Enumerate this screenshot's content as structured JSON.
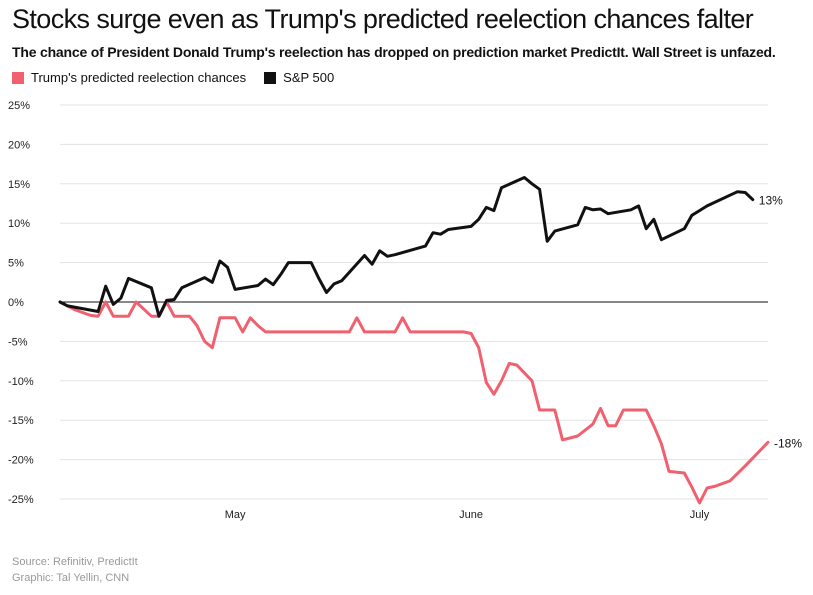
{
  "header": {
    "title": "Stocks surge even as Trump's predicted reelection chances falter",
    "subtitle": "The chance of President Donald Trump's reelection has dropped on prediction market PredictIt. Wall Street is unfazed."
  },
  "footer": {
    "source": "Source: Refinitiv, PredictIt",
    "graphic": "Graphic: Tal Yellin, CNN"
  },
  "chart_data": {
    "type": "line",
    "xlabel": "",
    "ylabel": "",
    "ylim": [
      -25,
      25
    ],
    "yticks": [
      25,
      20,
      15,
      10,
      5,
      0,
      -5,
      -10,
      -15,
      -20,
      -25
    ],
    "ytick_labels": [
      "25%",
      "20%",
      "15%",
      "10%",
      "5%",
      "0%",
      "-5%",
      "-10%",
      "-15%",
      "-20%",
      "-25%"
    ],
    "xlim": [
      "2020-04-08",
      "2020-07-10"
    ],
    "xticks": [
      {
        "label": "May",
        "date": "2020-05-01"
      },
      {
        "label": "June",
        "date": "2020-06-01"
      },
      {
        "label": "July",
        "date": "2020-07-01"
      }
    ],
    "grid": true,
    "legend_position": "top-left",
    "series": [
      {
        "name": "Trump's predicted reelection chances",
        "color": "#f0606f",
        "end_label": "-18%",
        "points": [
          [
            "2020-04-08",
            0
          ],
          [
            "2020-04-10",
            -1
          ],
          [
            "2020-04-12",
            -1.7
          ],
          [
            "2020-04-13",
            -1.8
          ],
          [
            "2020-04-14",
            0
          ],
          [
            "2020-04-15",
            -1.8
          ],
          [
            "2020-04-16",
            -1.8
          ],
          [
            "2020-04-17",
            -1.8
          ],
          [
            "2020-04-18",
            0
          ],
          [
            "2020-04-20",
            -1.8
          ],
          [
            "2020-04-21",
            -1.8
          ],
          [
            "2020-04-22",
            0
          ],
          [
            "2020-04-23",
            -1.8
          ],
          [
            "2020-04-24",
            -1.8
          ],
          [
            "2020-04-25",
            -1.8
          ],
          [
            "2020-04-26",
            -3
          ],
          [
            "2020-04-27",
            -5
          ],
          [
            "2020-04-28",
            -5.8
          ],
          [
            "2020-04-29",
            -2
          ],
          [
            "2020-04-30",
            -2
          ],
          [
            "2020-05-01",
            -2
          ],
          [
            "2020-05-02",
            -3.8
          ],
          [
            "2020-05-03",
            -2
          ],
          [
            "2020-05-04",
            -3
          ],
          [
            "2020-05-05",
            -3.8
          ],
          [
            "2020-05-15",
            -3.8
          ],
          [
            "2020-05-16",
            -3.8
          ],
          [
            "2020-05-17",
            -2
          ],
          [
            "2020-05-18",
            -3.8
          ],
          [
            "2020-05-22",
            -3.8
          ],
          [
            "2020-05-23",
            -2
          ],
          [
            "2020-05-24",
            -3.8
          ],
          [
            "2020-05-29",
            -3.8
          ],
          [
            "2020-05-31",
            -3.8
          ],
          [
            "2020-06-01",
            -4
          ],
          [
            "2020-06-02",
            -5.8
          ],
          [
            "2020-06-03",
            -10.2
          ],
          [
            "2020-06-04",
            -11.7
          ],
          [
            "2020-06-05",
            -10
          ],
          [
            "2020-06-06",
            -7.8
          ],
          [
            "2020-06-07",
            -8
          ],
          [
            "2020-06-08",
            -9
          ],
          [
            "2020-06-09",
            -10
          ],
          [
            "2020-06-10",
            -13.7
          ],
          [
            "2020-06-11",
            -13.7
          ],
          [
            "2020-06-12",
            -13.7
          ],
          [
            "2020-06-13",
            -17.5
          ],
          [
            "2020-06-15",
            -17
          ],
          [
            "2020-06-17",
            -15.5
          ],
          [
            "2020-06-18",
            -13.5
          ],
          [
            "2020-06-19",
            -15.7
          ],
          [
            "2020-06-20",
            -15.7
          ],
          [
            "2020-06-21",
            -13.7
          ],
          [
            "2020-06-23",
            -13.7
          ],
          [
            "2020-06-24",
            -13.7
          ],
          [
            "2020-06-25",
            -15.7
          ],
          [
            "2020-06-26",
            -18
          ],
          [
            "2020-06-27",
            -21.5
          ],
          [
            "2020-06-29",
            -21.7
          ],
          [
            "2020-06-30",
            -23.5
          ],
          [
            "2020-07-01",
            -25.5
          ],
          [
            "2020-07-02",
            -23.6
          ],
          [
            "2020-07-03",
            -23.4
          ],
          [
            "2020-07-05",
            -22.7
          ],
          [
            "2020-07-07",
            -20.8
          ],
          [
            "2020-07-10",
            -17.8
          ]
        ]
      },
      {
        "name": "S&P 500",
        "color": "#111111",
        "end_label": "13%",
        "points": [
          [
            "2020-04-08",
            0
          ],
          [
            "2020-04-09",
            -0.5
          ],
          [
            "2020-04-13",
            -1.2
          ],
          [
            "2020-04-14",
            2
          ],
          [
            "2020-04-15",
            -0.3
          ],
          [
            "2020-04-16",
            0.5
          ],
          [
            "2020-04-17",
            3
          ],
          [
            "2020-04-20",
            1.8
          ],
          [
            "2020-04-21",
            -1.8
          ],
          [
            "2020-04-22",
            0.2
          ],
          [
            "2020-04-23",
            0.3
          ],
          [
            "2020-04-24",
            1.8
          ],
          [
            "2020-04-27",
            3.1
          ],
          [
            "2020-04-28",
            2.5
          ],
          [
            "2020-04-29",
            5.2
          ],
          [
            "2020-04-30",
            4.4
          ],
          [
            "2020-05-01",
            1.6
          ],
          [
            "2020-05-04",
            2.1
          ],
          [
            "2020-05-05",
            2.9
          ],
          [
            "2020-05-06",
            2.2
          ],
          [
            "2020-05-07",
            3.5
          ],
          [
            "2020-05-08",
            5
          ],
          [
            "2020-05-11",
            5
          ],
          [
            "2020-05-12",
            3
          ],
          [
            "2020-05-13",
            1.2
          ],
          [
            "2020-05-14",
            2.3
          ],
          [
            "2020-05-15",
            2.7
          ],
          [
            "2020-05-18",
            5.9
          ],
          [
            "2020-05-19",
            4.8
          ],
          [
            "2020-05-20",
            6.5
          ],
          [
            "2020-05-21",
            5.8
          ],
          [
            "2020-05-22",
            6
          ],
          [
            "2020-05-26",
            7.1
          ],
          [
            "2020-05-27",
            8.8
          ],
          [
            "2020-05-28",
            8.6
          ],
          [
            "2020-05-29",
            9.2
          ],
          [
            "2020-06-01",
            9.6
          ],
          [
            "2020-06-02",
            10.5
          ],
          [
            "2020-06-03",
            12
          ],
          [
            "2020-06-04",
            11.6
          ],
          [
            "2020-06-05",
            14.5
          ],
          [
            "2020-06-08",
            15.8
          ],
          [
            "2020-06-09",
            15
          ],
          [
            "2020-06-10",
            14.3
          ],
          [
            "2020-06-11",
            7.7
          ],
          [
            "2020-06-12",
            9
          ],
          [
            "2020-06-15",
            9.8
          ],
          [
            "2020-06-16",
            12
          ],
          [
            "2020-06-17",
            11.7
          ],
          [
            "2020-06-18",
            11.8
          ],
          [
            "2020-06-19",
            11.2
          ],
          [
            "2020-06-22",
            11.7
          ],
          [
            "2020-06-23",
            12.2
          ],
          [
            "2020-06-24",
            9.3
          ],
          [
            "2020-06-25",
            10.5
          ],
          [
            "2020-06-26",
            7.9
          ],
          [
            "2020-06-29",
            9.3
          ],
          [
            "2020-06-30",
            11
          ],
          [
            "2020-07-01",
            11.6
          ],
          [
            "2020-07-02",
            12.2
          ],
          [
            "2020-07-06",
            14
          ],
          [
            "2020-07-07",
            13.9
          ],
          [
            "2020-07-08",
            13
          ]
        ]
      }
    ]
  }
}
